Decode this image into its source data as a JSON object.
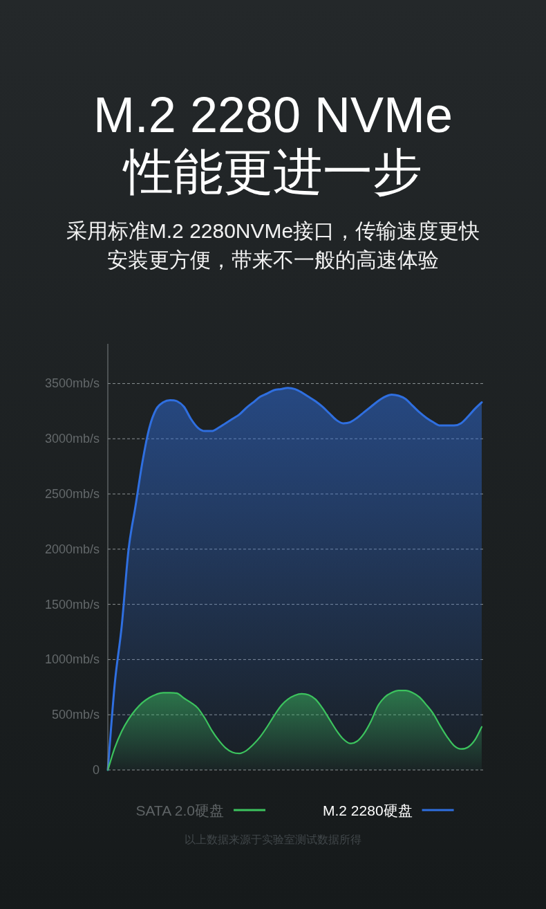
{
  "chart_data": {
    "type": "area",
    "title": "M.2 2280 NVMe\n性能更进一步",
    "subtitle": "采用标准M.2 2280NVMe接口，传输速度更快安装更方便，带来不一般的高速体验",
    "categories": [
      null,
      null,
      null,
      null,
      null,
      null,
      null,
      null,
      null,
      null,
      null,
      null,
      null,
      null,
      null,
      null,
      null,
      null,
      null,
      null,
      null,
      null,
      null,
      null,
      null,
      null,
      null,
      null,
      null,
      null,
      null,
      null,
      null,
      null,
      null,
      null,
      null,
      null,
      null,
      null,
      null,
      null,
      null,
      null,
      null,
      null,
      null,
      null,
      null,
      null,
      null,
      null,
      null,
      null,
      null
    ],
    "series": [
      {
        "name": "SATA 2.0硬盘",
        "color": "#3cc35e",
        "values": [
          0,
          200,
          350,
          460,
          545,
          610,
          655,
          685,
          700,
          700,
          695,
          650,
          610,
          560,
          470,
          360,
          270,
          200,
          160,
          150,
          175,
          230,
          300,
          390,
          490,
          580,
          640,
          675,
          690,
          680,
          640,
          560,
          460,
          360,
          280,
          240,
          260,
          330,
          440,
          580,
          660,
          700,
          720,
          720,
          700,
          660,
          590,
          510,
          400,
          300,
          220,
          190,
          205,
          270,
          390
        ]
      },
      {
        "name": "M.2 2280硬盘",
        "color": "#2f6fe0",
        "values": [
          0,
          780,
          1300,
          2000,
          2390,
          2790,
          3100,
          3270,
          3330,
          3350,
          3340,
          3290,
          3180,
          3100,
          3070,
          3070,
          3100,
          3140,
          3180,
          3220,
          3280,
          3330,
          3380,
          3410,
          3440,
          3450,
          3460,
          3450,
          3420,
          3380,
          3340,
          3290,
          3230,
          3170,
          3140,
          3150,
          3190,
          3240,
          3290,
          3340,
          3380,
          3400,
          3390,
          3360,
          3300,
          3240,
          3190,
          3150,
          3120,
          3120,
          3120,
          3140,
          3200,
          3270,
          3330
        ]
      }
    ],
    "ylim": [
      0,
      3860
    ],
    "yticks": [
      0,
      {
        "value": 500,
        "label": "500mb/s"
      },
      {
        "value": 1000,
        "label": "1000mb/s"
      },
      {
        "value": 1500,
        "label": "1500mb/s"
      },
      {
        "value": 2000,
        "label": "2000mb/s"
      },
      {
        "value": 2500,
        "label": "2500mb/s"
      },
      {
        "value": 3000,
        "label": "3000mb/s"
      },
      {
        "value": 3500,
        "label": "3500mb/s"
      }
    ],
    "grid": "y",
    "legend": "bottom",
    "tick_labels": "y",
    "annotations": [
      "以上数据来源于实验室测试数据所得"
    ]
  }
}
